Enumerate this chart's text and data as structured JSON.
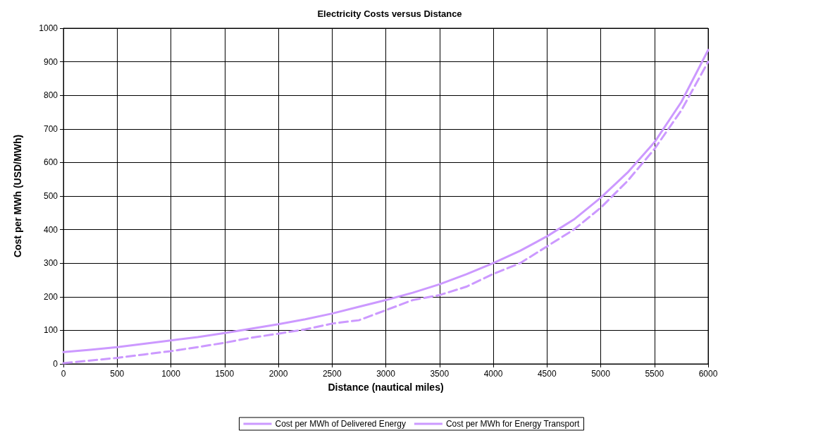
{
  "chart_data": {
    "type": "line",
    "title": "Electricity Costs versus Distance",
    "xlabel": "Distance (nautical miles)",
    "ylabel": "Cost per MWh (USD/MWh)",
    "x": [
      0,
      250,
      500,
      750,
      1000,
      1250,
      1500,
      1750,
      2000,
      2250,
      2500,
      2750,
      3000,
      3250,
      3500,
      3750,
      4000,
      4250,
      4500,
      4750,
      5000,
      5250,
      5500,
      5750,
      6000
    ],
    "series": [
      {
        "name": "Cost per MWh of Delivered Energy",
        "color": "#cc99ff",
        "line_style": "solid",
        "values": [
          35,
          42,
          50,
          60,
          70,
          80,
          92,
          105,
          118,
          133,
          150,
          170,
          190,
          212,
          237,
          267,
          300,
          337,
          380,
          430,
          495,
          570,
          660,
          780,
          935
        ]
      },
      {
        "name": "Cost per MWh for Energy Transport",
        "color": "#cc99ff",
        "line_style": "dashed",
        "values": [
          2,
          10,
          18,
          28,
          38,
          50,
          63,
          78,
          90,
          103,
          120,
          130,
          160,
          190,
          205,
          230,
          268,
          300,
          350,
          400,
          465,
          545,
          640,
          755,
          900
        ]
      }
    ],
    "xlim": [
      0,
      6000
    ],
    "xticks": [
      0,
      500,
      1000,
      1500,
      2000,
      2500,
      3000,
      3500,
      4000,
      4500,
      5000,
      5500,
      6000
    ],
    "ylim": [
      0,
      1000
    ],
    "yticks": [
      0,
      100,
      200,
      300,
      400,
      500,
      600,
      700,
      800,
      900,
      1000
    ],
    "grid": true,
    "legend": "bottom",
    "marker": "none"
  }
}
